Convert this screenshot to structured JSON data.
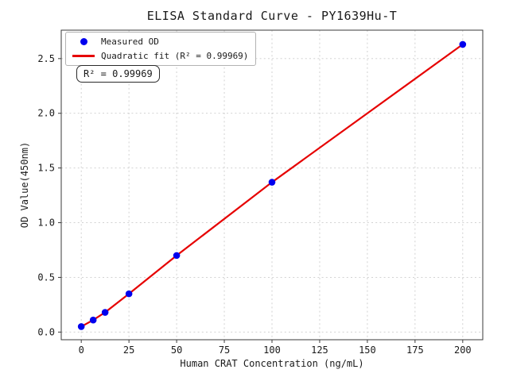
{
  "chart_data": {
    "type": "scatter",
    "title": "ELISA Standard Curve - PY1639Hu-T",
    "xlabel": "Human CRAT Concentration (ng/mL)",
    "ylabel": "OD Value(450nm)",
    "series": [
      {
        "name": "Measured OD",
        "style": "scatter",
        "color": "#0000ee",
        "x": [
          0,
          6.25,
          12.5,
          25,
          50,
          100,
          200
        ],
        "y": [
          0.05,
          0.11,
          0.18,
          0.35,
          0.7,
          1.37,
          2.63
        ]
      },
      {
        "name": "Quadratic fit (R² = 0.99969)",
        "style": "line",
        "color": "#e60000",
        "x": [
          0,
          6.25,
          12.5,
          25,
          50,
          100,
          200
        ],
        "y": [
          0.05,
          0.11,
          0.18,
          0.35,
          0.7,
          1.37,
          2.63
        ]
      }
    ],
    "x_ticks": [
      0,
      25,
      50,
      75,
      100,
      125,
      150,
      175,
      200
    ],
    "x_tick_labels": [
      "0",
      "25",
      "50",
      "75",
      "100",
      "125",
      "150",
      "175",
      "200"
    ],
    "y_ticks": [
      0,
      0.5,
      1.0,
      1.5,
      2.0,
      2.5
    ],
    "y_tick_labels": [
      "0.0",
      "0.5",
      "1.0",
      "1.5",
      "2.0",
      "2.5"
    ],
    "xlim": [
      -10.5,
      210.5
    ],
    "ylim": [
      -0.07,
      2.76
    ],
    "grid": "dashed",
    "legend": {
      "position": "upper-left",
      "items": [
        {
          "label": "Measured OD",
          "marker": "dot",
          "color": "#0000ee"
        },
        {
          "label": "Quadratic fit (R² = 0.99969)",
          "marker": "line",
          "color": "#e60000"
        }
      ]
    },
    "annotation": {
      "text": "R² = 0.99969"
    },
    "colors": {
      "grid": "#cccccc",
      "spine": "#3a3a3a",
      "marker_blue": "#0000ee",
      "line_red": "#e60000"
    }
  }
}
